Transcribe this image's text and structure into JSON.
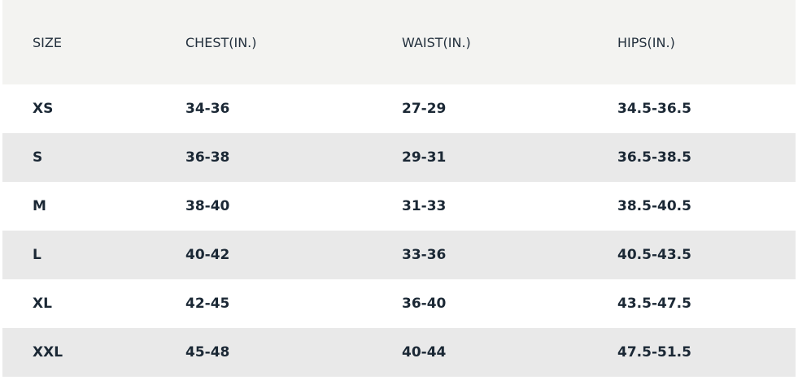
{
  "table": {
    "headers": [
      "SIZE",
      "CHEST(IN.)",
      "WAIST(IN.)",
      "HIPS(IN.)"
    ],
    "rows": [
      [
        "XS",
        "34-36",
        "27-29",
        "34.5-36.5"
      ],
      [
        "S",
        "36-38",
        "29-31",
        "36.5-38.5"
      ],
      [
        "M",
        "38-40",
        "31-33",
        "38.5-40.5"
      ],
      [
        "L",
        "40-42",
        "33-36",
        "40.5-43.5"
      ],
      [
        "XL",
        "42-45",
        "36-40",
        "43.5-47.5"
      ],
      [
        "XXL",
        "45-48",
        "40-44",
        "47.5-51.5"
      ]
    ]
  },
  "colors": {
    "header_background": "#f3f3f1",
    "alternate_row_background": "#e9e9e9",
    "row_background": "#ffffff",
    "text": "#1b2835"
  }
}
